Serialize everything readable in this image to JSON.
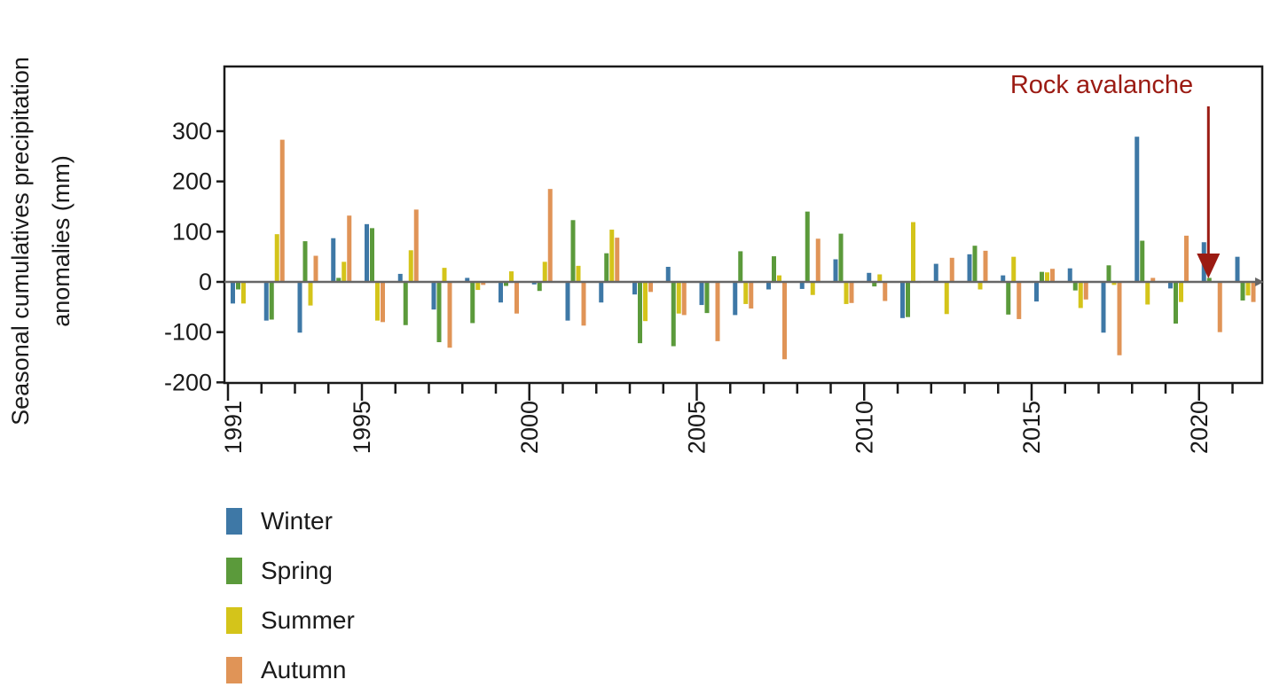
{
  "chart_data": {
    "type": "bar",
    "title": "",
    "ylabel_lines": [
      "Seasonal cumulatives precipitation",
      "anomalies (mm)"
    ],
    "xlabel": "",
    "ylim": [
      -200,
      420
    ],
    "yticks": [
      300,
      200,
      100,
      0,
      -100,
      -200
    ],
    "xlim": [
      1991,
      2021
    ],
    "xticks": [
      1991,
      1995,
      2000,
      2005,
      2010,
      2015,
      2020
    ],
    "grid": false,
    "legend_position": "bottom-left",
    "series": [
      {
        "name": "Winter",
        "color": "#3e78a6",
        "values": [
          -43,
          -77,
          -101,
          87,
          115,
          16,
          -55,
          8,
          -41,
          -5,
          -77,
          -41,
          -25,
          30,
          -46,
          -66,
          -15,
          -14,
          45,
          18,
          -72,
          36,
          55,
          13,
          -39,
          27,
          -101,
          289,
          -13,
          79,
          50
        ]
      },
      {
        "name": "Spring",
        "color": "#5b9a3b",
        "values": [
          -15,
          -75,
          81,
          8,
          107,
          -86,
          -120,
          -82,
          -8,
          -18,
          123,
          57,
          -122,
          -128,
          -62,
          61,
          51,
          140,
          96,
          -9,
          -70,
          0,
          72,
          -65,
          20,
          -17,
          33,
          82,
          -83,
          8,
          -37
        ]
      },
      {
        "name": "Summer",
        "color": "#d4c41a",
        "values": [
          -43,
          95,
          -47,
          40,
          -77,
          63,
          28,
          -16,
          21,
          40,
          32,
          104,
          -78,
          -63,
          0,
          -44,
          13,
          -26,
          -44,
          15,
          119,
          -64,
          -15,
          50,
          19,
          -52,
          -6,
          -45,
          -40,
          0,
          -27
        ]
      },
      {
        "name": "Autumn",
        "color": "#e09457",
        "values": [
          0,
          283,
          52,
          132,
          -80,
          144,
          -131,
          -6,
          -63,
          185,
          -87,
          88,
          -20,
          -66,
          -118,
          -53,
          -154,
          86,
          -42,
          -38,
          -2,
          48,
          62,
          -74,
          26,
          -35,
          -146,
          8,
          92,
          -100,
          -40
        ]
      }
    ],
    "annotation": {
      "text": "Rock avalanche",
      "x": 2020.2,
      "color": "#9b1b13"
    }
  }
}
